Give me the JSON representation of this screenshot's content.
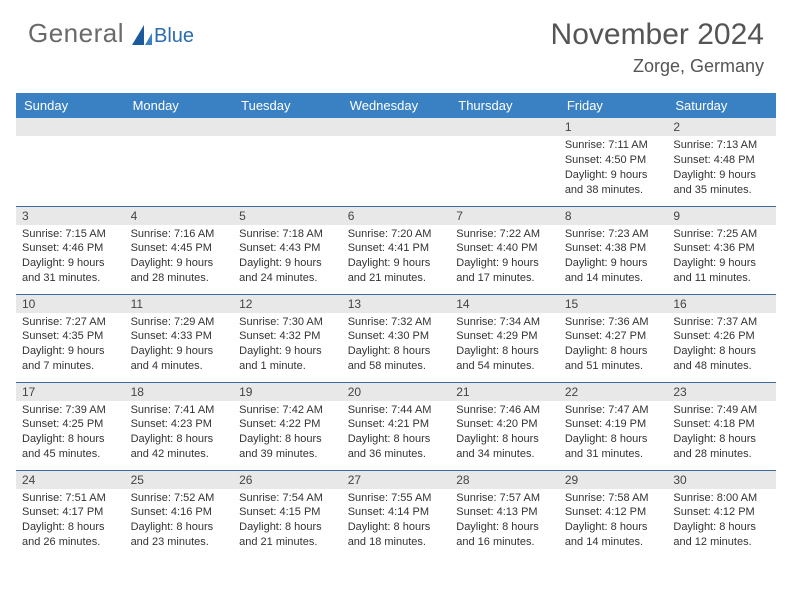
{
  "logo": {
    "general": "General",
    "blue": "Blue"
  },
  "title": "November 2024",
  "location": "Zorge, Germany",
  "header_bg": "#3a81c3",
  "daynum_bg": "#e8e8e8",
  "border_color": "#3a6a9a",
  "weekdays": [
    "Sunday",
    "Monday",
    "Tuesday",
    "Wednesday",
    "Thursday",
    "Friday",
    "Saturday"
  ],
  "weeks": [
    [
      null,
      null,
      null,
      null,
      null,
      {
        "n": "1",
        "sr": "Sunrise: 7:11 AM",
        "ss": "Sunset: 4:50 PM",
        "d1": "Daylight: 9 hours",
        "d2": "and 38 minutes."
      },
      {
        "n": "2",
        "sr": "Sunrise: 7:13 AM",
        "ss": "Sunset: 4:48 PM",
        "d1": "Daylight: 9 hours",
        "d2": "and 35 minutes."
      }
    ],
    [
      {
        "n": "3",
        "sr": "Sunrise: 7:15 AM",
        "ss": "Sunset: 4:46 PM",
        "d1": "Daylight: 9 hours",
        "d2": "and 31 minutes."
      },
      {
        "n": "4",
        "sr": "Sunrise: 7:16 AM",
        "ss": "Sunset: 4:45 PM",
        "d1": "Daylight: 9 hours",
        "d2": "and 28 minutes."
      },
      {
        "n": "5",
        "sr": "Sunrise: 7:18 AM",
        "ss": "Sunset: 4:43 PM",
        "d1": "Daylight: 9 hours",
        "d2": "and 24 minutes."
      },
      {
        "n": "6",
        "sr": "Sunrise: 7:20 AM",
        "ss": "Sunset: 4:41 PM",
        "d1": "Daylight: 9 hours",
        "d2": "and 21 minutes."
      },
      {
        "n": "7",
        "sr": "Sunrise: 7:22 AM",
        "ss": "Sunset: 4:40 PM",
        "d1": "Daylight: 9 hours",
        "d2": "and 17 minutes."
      },
      {
        "n": "8",
        "sr": "Sunrise: 7:23 AM",
        "ss": "Sunset: 4:38 PM",
        "d1": "Daylight: 9 hours",
        "d2": "and 14 minutes."
      },
      {
        "n": "9",
        "sr": "Sunrise: 7:25 AM",
        "ss": "Sunset: 4:36 PM",
        "d1": "Daylight: 9 hours",
        "d2": "and 11 minutes."
      }
    ],
    [
      {
        "n": "10",
        "sr": "Sunrise: 7:27 AM",
        "ss": "Sunset: 4:35 PM",
        "d1": "Daylight: 9 hours",
        "d2": "and 7 minutes."
      },
      {
        "n": "11",
        "sr": "Sunrise: 7:29 AM",
        "ss": "Sunset: 4:33 PM",
        "d1": "Daylight: 9 hours",
        "d2": "and 4 minutes."
      },
      {
        "n": "12",
        "sr": "Sunrise: 7:30 AM",
        "ss": "Sunset: 4:32 PM",
        "d1": "Daylight: 9 hours",
        "d2": "and 1 minute."
      },
      {
        "n": "13",
        "sr": "Sunrise: 7:32 AM",
        "ss": "Sunset: 4:30 PM",
        "d1": "Daylight: 8 hours",
        "d2": "and 58 minutes."
      },
      {
        "n": "14",
        "sr": "Sunrise: 7:34 AM",
        "ss": "Sunset: 4:29 PM",
        "d1": "Daylight: 8 hours",
        "d2": "and 54 minutes."
      },
      {
        "n": "15",
        "sr": "Sunrise: 7:36 AM",
        "ss": "Sunset: 4:27 PM",
        "d1": "Daylight: 8 hours",
        "d2": "and 51 minutes."
      },
      {
        "n": "16",
        "sr": "Sunrise: 7:37 AM",
        "ss": "Sunset: 4:26 PM",
        "d1": "Daylight: 8 hours",
        "d2": "and 48 minutes."
      }
    ],
    [
      {
        "n": "17",
        "sr": "Sunrise: 7:39 AM",
        "ss": "Sunset: 4:25 PM",
        "d1": "Daylight: 8 hours",
        "d2": "and 45 minutes."
      },
      {
        "n": "18",
        "sr": "Sunrise: 7:41 AM",
        "ss": "Sunset: 4:23 PM",
        "d1": "Daylight: 8 hours",
        "d2": "and 42 minutes."
      },
      {
        "n": "19",
        "sr": "Sunrise: 7:42 AM",
        "ss": "Sunset: 4:22 PM",
        "d1": "Daylight: 8 hours",
        "d2": "and 39 minutes."
      },
      {
        "n": "20",
        "sr": "Sunrise: 7:44 AM",
        "ss": "Sunset: 4:21 PM",
        "d1": "Daylight: 8 hours",
        "d2": "and 36 minutes."
      },
      {
        "n": "21",
        "sr": "Sunrise: 7:46 AM",
        "ss": "Sunset: 4:20 PM",
        "d1": "Daylight: 8 hours",
        "d2": "and 34 minutes."
      },
      {
        "n": "22",
        "sr": "Sunrise: 7:47 AM",
        "ss": "Sunset: 4:19 PM",
        "d1": "Daylight: 8 hours",
        "d2": "and 31 minutes."
      },
      {
        "n": "23",
        "sr": "Sunrise: 7:49 AM",
        "ss": "Sunset: 4:18 PM",
        "d1": "Daylight: 8 hours",
        "d2": "and 28 minutes."
      }
    ],
    [
      {
        "n": "24",
        "sr": "Sunrise: 7:51 AM",
        "ss": "Sunset: 4:17 PM",
        "d1": "Daylight: 8 hours",
        "d2": "and 26 minutes."
      },
      {
        "n": "25",
        "sr": "Sunrise: 7:52 AM",
        "ss": "Sunset: 4:16 PM",
        "d1": "Daylight: 8 hours",
        "d2": "and 23 minutes."
      },
      {
        "n": "26",
        "sr": "Sunrise: 7:54 AM",
        "ss": "Sunset: 4:15 PM",
        "d1": "Daylight: 8 hours",
        "d2": "and 21 minutes."
      },
      {
        "n": "27",
        "sr": "Sunrise: 7:55 AM",
        "ss": "Sunset: 4:14 PM",
        "d1": "Daylight: 8 hours",
        "d2": "and 18 minutes."
      },
      {
        "n": "28",
        "sr": "Sunrise: 7:57 AM",
        "ss": "Sunset: 4:13 PM",
        "d1": "Daylight: 8 hours",
        "d2": "and 16 minutes."
      },
      {
        "n": "29",
        "sr": "Sunrise: 7:58 AM",
        "ss": "Sunset: 4:12 PM",
        "d1": "Daylight: 8 hours",
        "d2": "and 14 minutes."
      },
      {
        "n": "30",
        "sr": "Sunrise: 8:00 AM",
        "ss": "Sunset: 4:12 PM",
        "d1": "Daylight: 8 hours",
        "d2": "and 12 minutes."
      }
    ]
  ]
}
